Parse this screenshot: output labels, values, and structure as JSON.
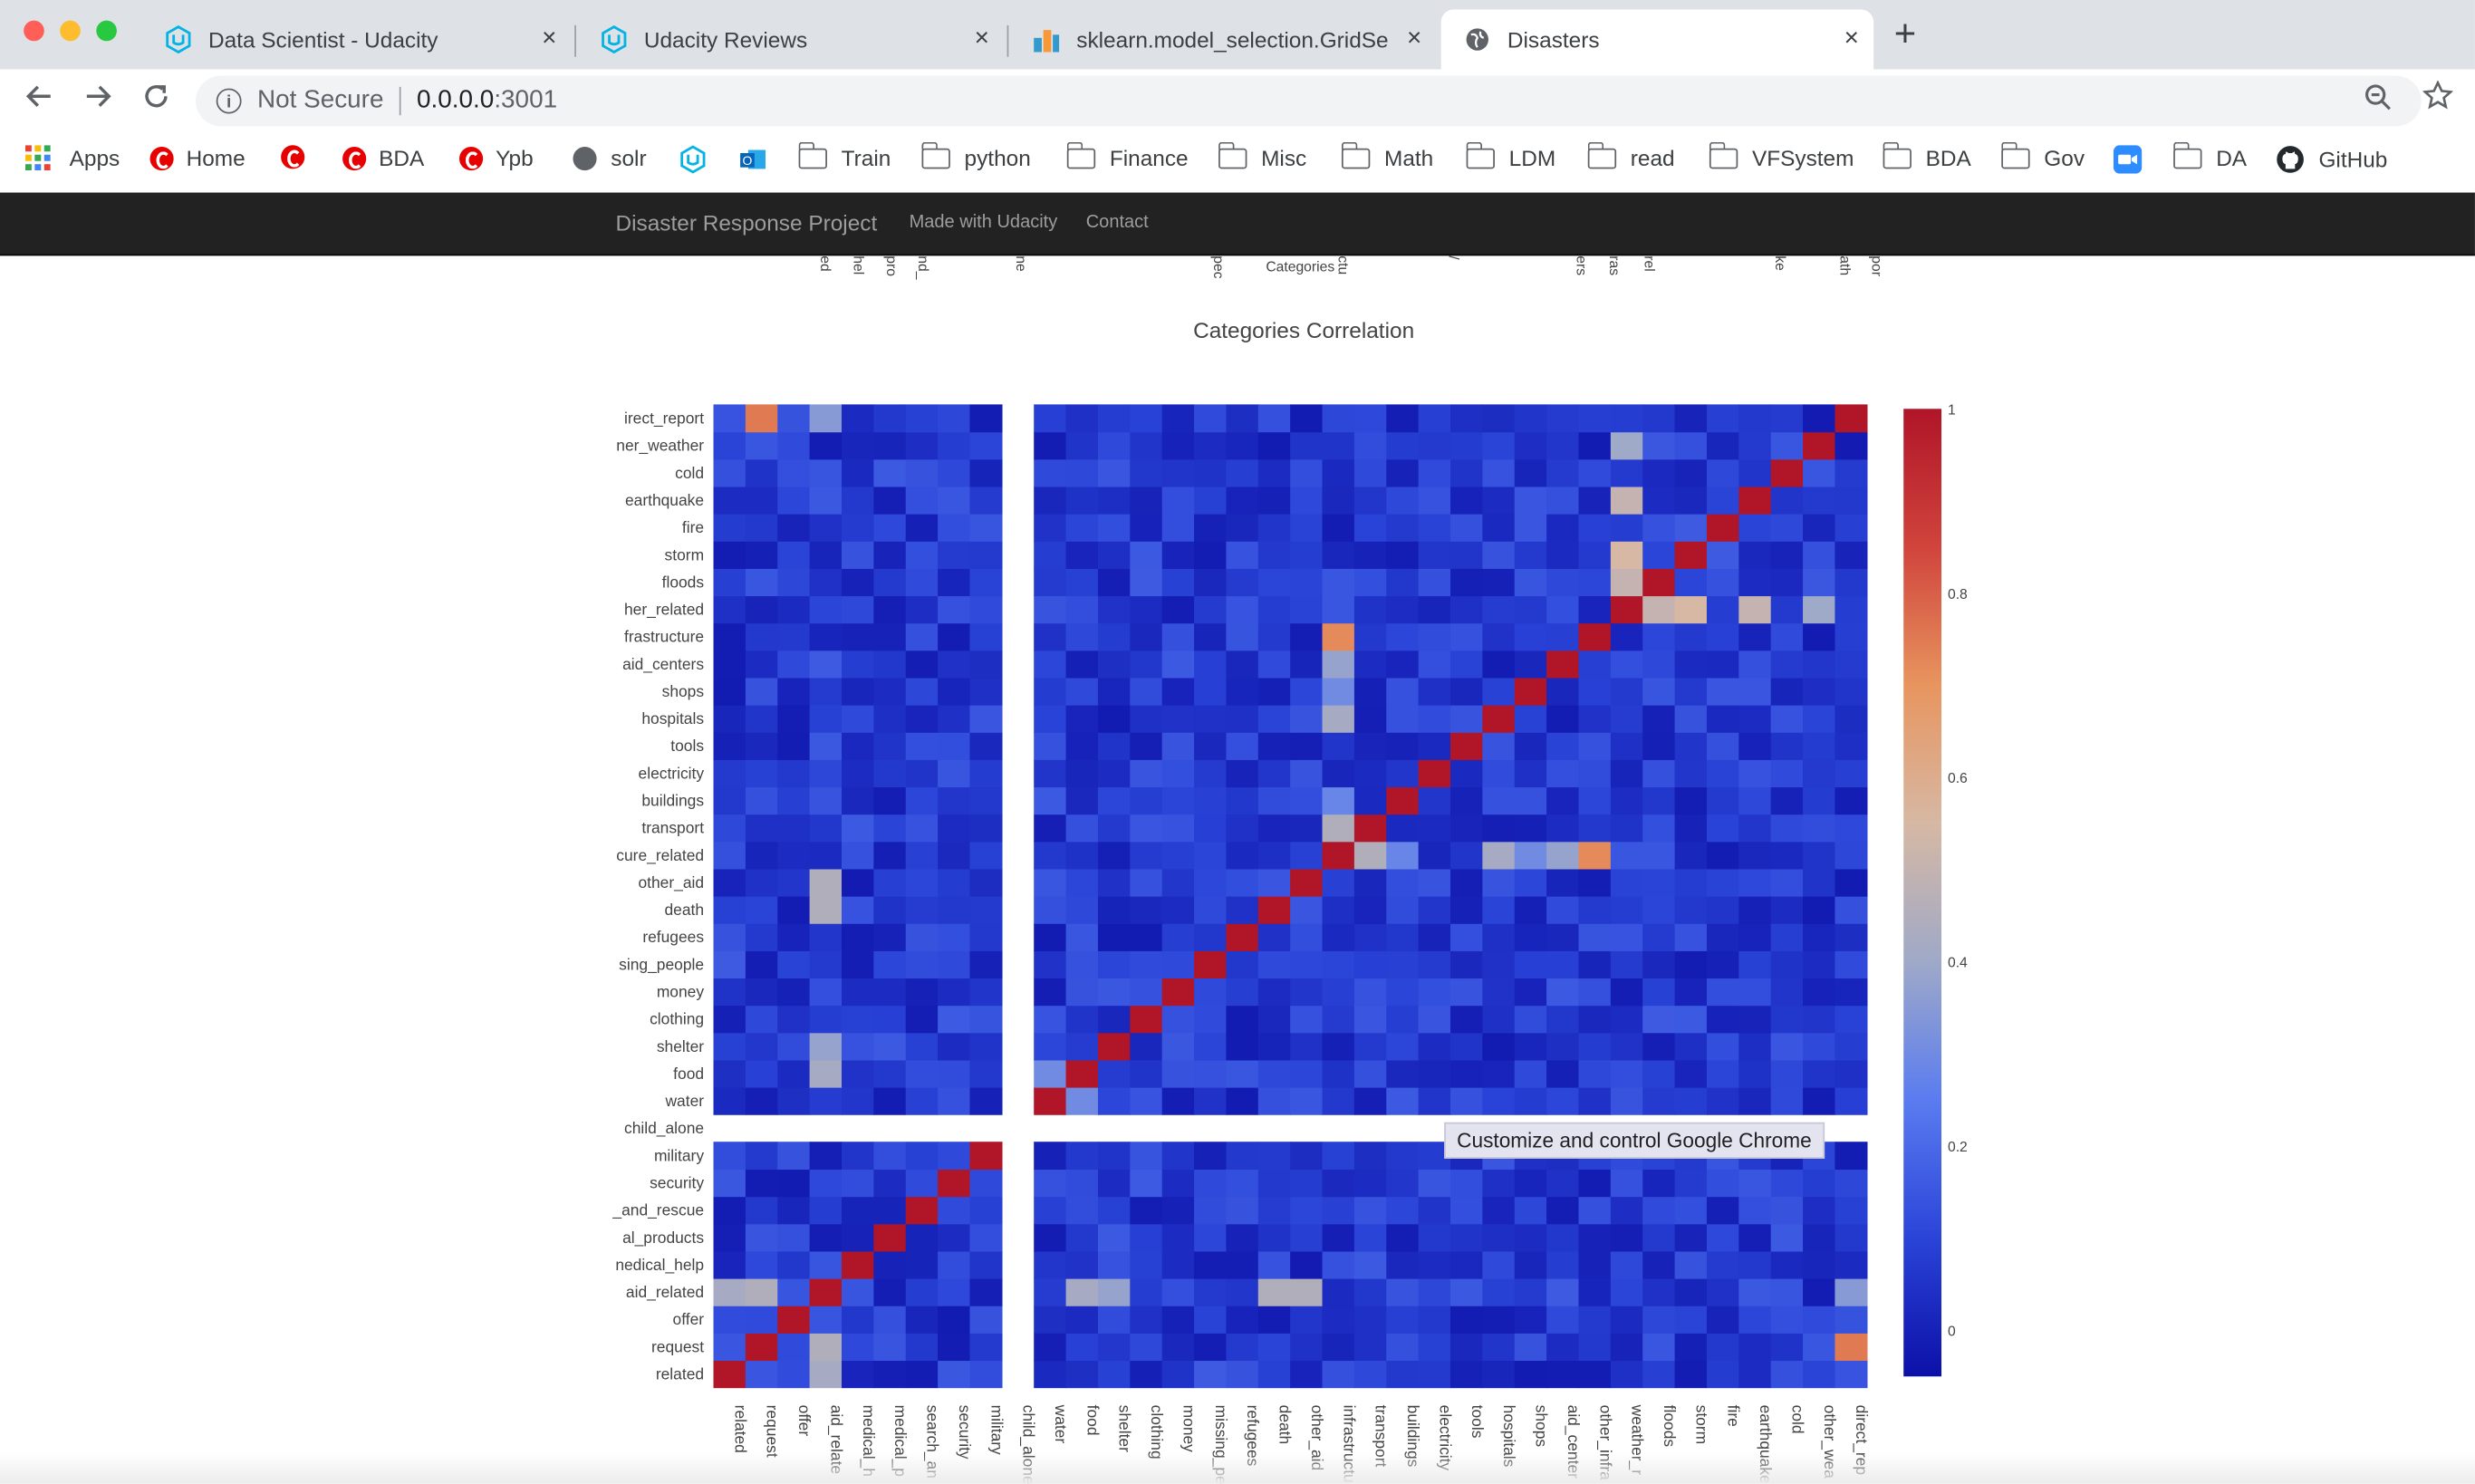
{
  "browser": {
    "tabs": [
      {
        "title": "Data Scientist - Udacity",
        "icon": "udacity-icon",
        "active": false
      },
      {
        "title": "Udacity Reviews",
        "icon": "udacity-icon",
        "active": false
      },
      {
        "title": "sklearn.model_selection.GridSe",
        "icon": "sklearn-icon",
        "active": false
      },
      {
        "title": "Disasters",
        "icon": "globe-icon",
        "active": true
      }
    ],
    "close_glyph": "×",
    "new_tab_glyph": "+",
    "address": {
      "security": "Not Secure",
      "host": "0.0.0.0",
      "port": ":3001"
    },
    "bookmarks": [
      "Apps",
      "Home",
      "",
      "BDA",
      "Ypb",
      "solr",
      "",
      "",
      "Train",
      "python",
      "Finance",
      "Misc",
      "Math",
      "LDM",
      "read",
      "VFSystem",
      "BDA",
      "Gov",
      "",
      "DA",
      "GitHub"
    ]
  },
  "navbar": {
    "brand": "Disaster Response Project",
    "links": [
      "Made with Udacity",
      "Contact"
    ]
  },
  "previous_chart": {
    "xlabel": "Categories",
    "visible_tick_fragments": [
      "ed",
      "hel",
      "pro",
      "nd_",
      "ne",
      "pec",
      "ctu",
      "/",
      "ers",
      "ras",
      "rel",
      "ke",
      "ath",
      "por"
    ]
  },
  "tooltip": "Customize and control Google Chrome",
  "chart_data": {
    "type": "heatmap",
    "title": "Categories Correlation",
    "categories": [
      "related",
      "request",
      "offer",
      "aid_related",
      "medical_help",
      "medical_products",
      "search_and_rescue",
      "security",
      "military",
      "child_alone",
      "water",
      "food",
      "shelter",
      "clothing",
      "money",
      "missing_people",
      "refugees",
      "death",
      "other_aid",
      "infrastructure_related",
      "transport",
      "buildings",
      "electricity",
      "tools",
      "hospitals",
      "shops",
      "aid_centers",
      "other_infrastructure",
      "weather_related",
      "floods",
      "storm",
      "fire",
      "earthquake",
      "cold",
      "other_weather",
      "direct_report"
    ],
    "y_tick_labels": [
      "related",
      "request",
      "offer",
      "aid_related",
      "nedical_help",
      "al_products",
      "_and_rescue",
      "security",
      "military",
      "child_alone",
      "water",
      "food",
      "shelter",
      "clothing",
      "money",
      "sing_people",
      "refugees",
      "death",
      "other_aid",
      "cure_related",
      "transport",
      "buildings",
      "electricity",
      "tools",
      "hospitals",
      "shops",
      "aid_centers",
      "frastructure",
      "her_related",
      "floods",
      "storm",
      "fire",
      "earthquake",
      "cold",
      "ner_weather",
      "irect_report"
    ],
    "x_tick_labels": [
      "related",
      "request",
      "offer",
      "aid_relate",
      "medical_h",
      "medical_p",
      "search_an",
      "security",
      "military",
      "child_alone",
      "water",
      "food",
      "shelter",
      "clothing",
      "money",
      "missing_pe",
      "refugees",
      "death",
      "other_aid",
      "infrastructu",
      "transport",
      "buildings",
      "electricity",
      "tools",
      "hospitals",
      "shops",
      "aid_center",
      "other_infra",
      "weather_r",
      "floods",
      "storm",
      "fire",
      "earthquake",
      "cold",
      "other_wea",
      "direct_rep"
    ],
    "diagonal": 1,
    "notable_correlations": [
      {
        "a": "related",
        "b": "aid_related",
        "value": 0.42
      },
      {
        "a": "request",
        "b": "aid_related",
        "value": 0.45
      },
      {
        "a": "request",
        "b": "direct_report",
        "value": 0.75
      },
      {
        "a": "aid_related",
        "b": "other_aid",
        "value": 0.45
      },
      {
        "a": "aid_related",
        "b": "food",
        "value": 0.42
      },
      {
        "a": "aid_related",
        "b": "shelter",
        "value": 0.38
      },
      {
        "a": "aid_related",
        "b": "death",
        "value": 0.45
      },
      {
        "a": "aid_related",
        "b": "direct_report",
        "value": 0.35
      },
      {
        "a": "infrastructure_related",
        "b": "other_infrastructure",
        "value": 0.72
      },
      {
        "a": "infrastructure_related",
        "b": "hospitals",
        "value": 0.42
      },
      {
        "a": "infrastructure_related",
        "b": "aid_centers",
        "value": 0.38
      },
      {
        "a": "infrastructure_related",
        "b": "shops",
        "value": 0.3
      },
      {
        "a": "infrastructure_related",
        "b": "transport",
        "value": 0.45
      },
      {
        "a": "weather_related",
        "b": "floods",
        "value": 0.5
      },
      {
        "a": "weather_related",
        "b": "storm",
        "value": 0.55
      },
      {
        "a": "weather_related",
        "b": "earthquake",
        "value": 0.5
      },
      {
        "a": "weather_related",
        "b": "other_weather",
        "value": 0.4
      },
      {
        "a": "buildings",
        "b": "infrastructure_related",
        "value": 0.28
      },
      {
        "a": "water",
        "b": "food",
        "value": 0.3
      }
    ],
    "colorscale": [
      "#0c10a8",
      "#2a44d8",
      "#5a7cf0",
      "#9fa9c8",
      "#d6b8a4",
      "#e8955f",
      "#d0443c",
      "#b01528"
    ],
    "zmin": -0.05,
    "zmax": 1,
    "colorbar_ticks": [
      0,
      0.2,
      0.4,
      0.6,
      0.8,
      1
    ],
    "colorbar_tick_labels": [
      "0",
      "0.2",
      "0.4",
      "0.6",
      "0.8",
      "1"
    ]
  }
}
